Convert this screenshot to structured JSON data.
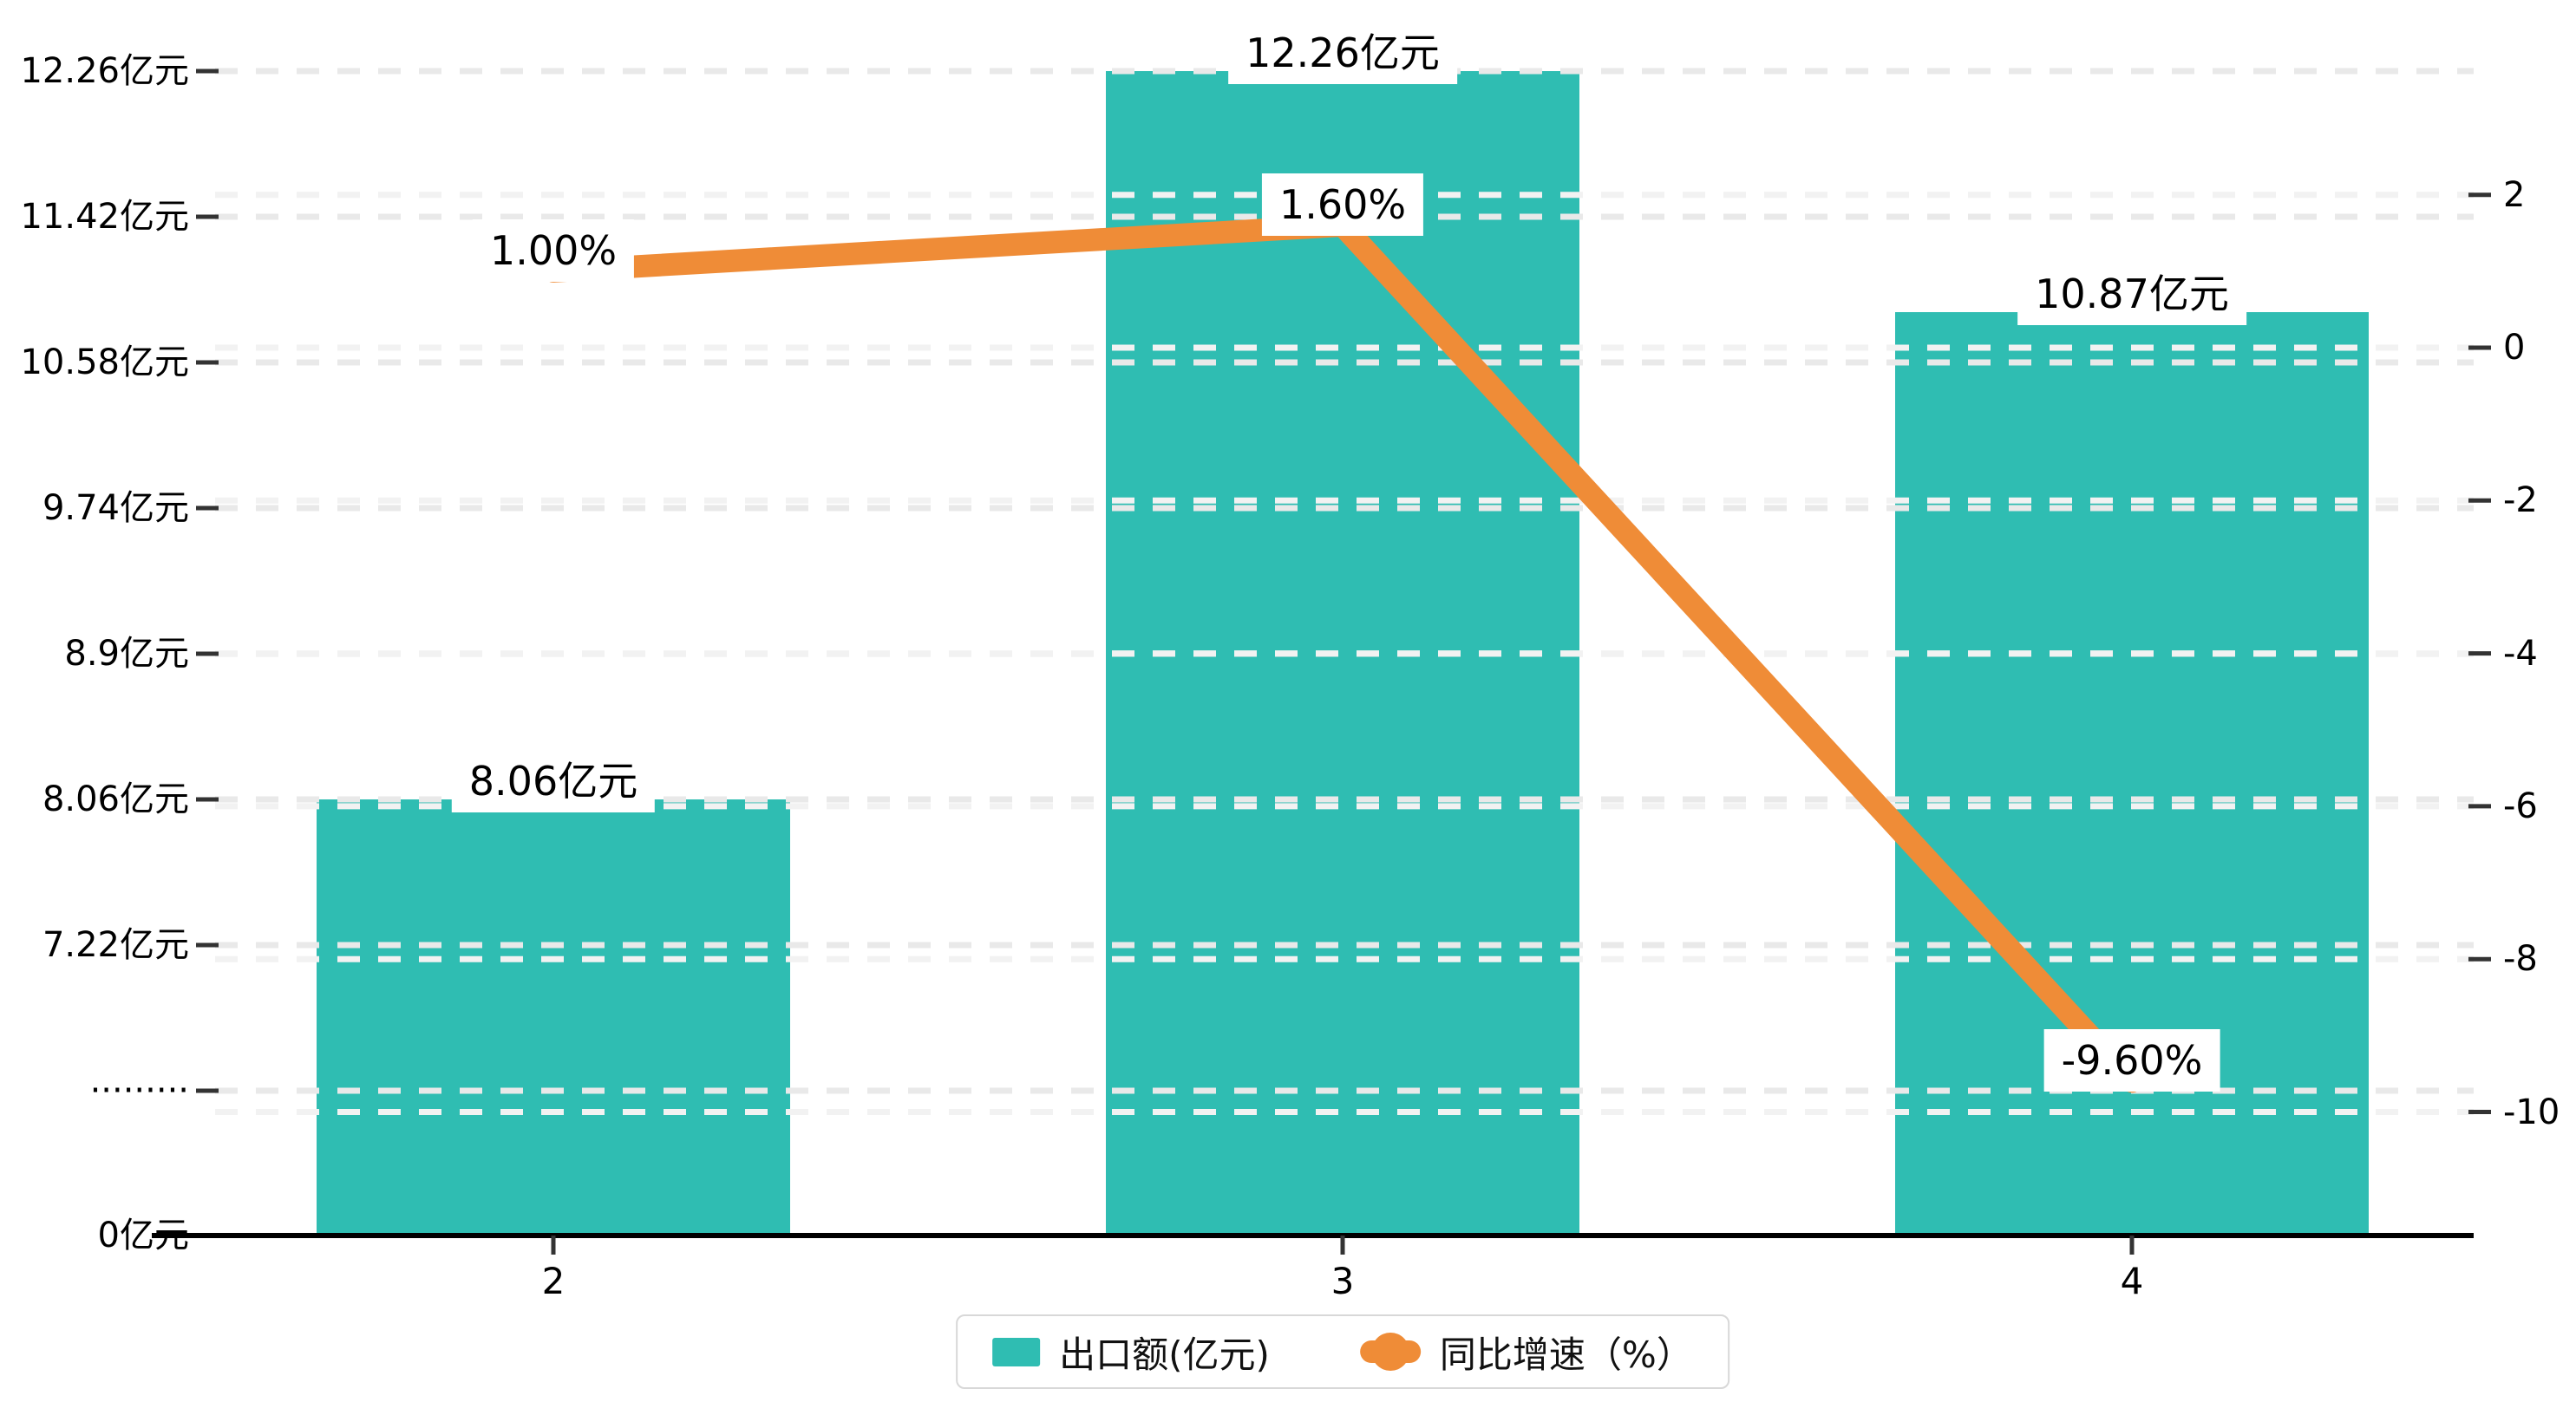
{
  "chart_data": {
    "type": "bar+line",
    "categories": [
      "2",
      "3",
      "4"
    ],
    "series": [
      {
        "name": "出口额(亿元)",
        "type": "bar",
        "unit": "亿元",
        "values": [
          8.06,
          12.26,
          10.87
        ],
        "data_labels": [
          "8.06亿元",
          "12.26亿元",
          "10.87亿元"
        ],
        "color": "#2FBDB2"
      },
      {
        "name": "同比增速（%）",
        "type": "line",
        "unit": "%",
        "values": [
          1.0,
          1.6,
          -9.6
        ],
        "data_labels": [
          "1.00%",
          "1.60%",
          "-9.60%"
        ],
        "color": "#EF8C37"
      }
    ],
    "left_axis": {
      "tick_labels": [
        "12.26亿元",
        "11.42亿元",
        "10.58亿元",
        "9.74亿元",
        "8.9亿元",
        "8.06亿元",
        "7.22亿元",
        "·········",
        "0亿元"
      ],
      "broken_axis": true
    },
    "right_axis": {
      "tick_labels": [
        "2",
        "0",
        "-2",
        "-4",
        "-6",
        "-8",
        "-10"
      ],
      "tick_values": [
        2,
        0,
        -2,
        -4,
        -6,
        -8,
        -10
      ],
      "ylim": [
        -10,
        2
      ]
    },
    "x_axis": {
      "tick_labels": [
        "2",
        "3",
        "4"
      ]
    },
    "legend": {
      "position": "bottom-center",
      "items": [
        {
          "label": "出口额(亿元)",
          "marker": "bar-swatch"
        },
        {
          "label": "同比增速（%）",
          "marker": "line-dot-swatch"
        }
      ]
    },
    "grid": true,
    "title": ""
  },
  "colors": {
    "bar": "#2FBDB2",
    "line": "#EF8C37",
    "grid_left": "#E9E9E9",
    "grid_right": "#F2F2F2",
    "axis": "#000000",
    "tick": "#333333",
    "text": "#000000",
    "label_bg": "#FFFFFF",
    "legend_border": "#D8D8D8"
  }
}
